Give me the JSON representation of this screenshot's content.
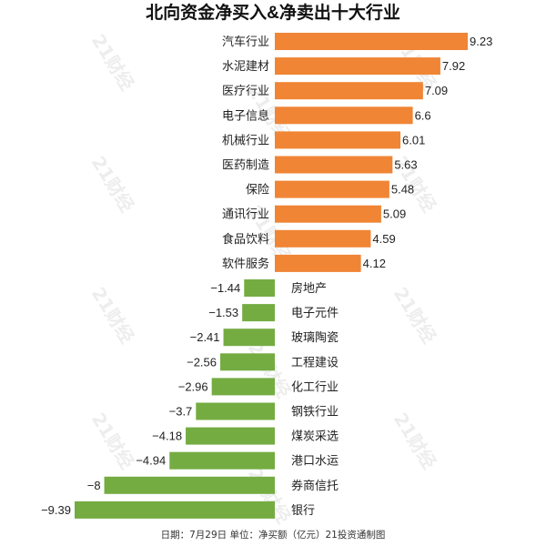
{
  "chart_data": {
    "type": "bar",
    "orientation": "horizontal",
    "title": "北向资金净买入&净卖出十大行业",
    "footer": "日期：7月29日  单位：净买额（亿元）21投资通制图",
    "categories": [
      "汽车行业",
      "水泥建材",
      "医疗行业",
      "电子信息",
      "机械行业",
      "医药制造",
      "保险",
      "通讯行业",
      "食品饮料",
      "软件服务",
      "房地产",
      "电子元件",
      "玻璃陶瓷",
      "工程建设",
      "化工行业",
      "钢铁行业",
      "煤炭采选",
      "港口水运",
      "券商信托",
      "银行"
    ],
    "values": [
      9.23,
      7.92,
      7.09,
      6.6,
      6.01,
      5.63,
      5.48,
      5.09,
      4.59,
      4.12,
      -1.44,
      -1.53,
      -2.41,
      -2.56,
      -2.96,
      -3.7,
      -4.18,
      -4.94,
      -8,
      -9.39
    ],
    "value_labels": [
      "9.23",
      "7.92",
      "7.09",
      "6.6",
      "6.01",
      "5.63",
      "5.48",
      "5.09",
      "4.59",
      "4.12",
      "−1.44",
      "−1.53",
      "−2.41",
      "−2.56",
      "−2.96",
      "−3.7",
      "−4.18",
      "−4.94",
      "−8",
      "−9.39"
    ],
    "colors": {
      "positive": "#F08535",
      "negative": "#74AC42"
    },
    "axis": {
      "min": -9.39,
      "max": 9.23,
      "visible": false
    },
    "grid": false,
    "legend": "none",
    "watermark": "21财经"
  }
}
